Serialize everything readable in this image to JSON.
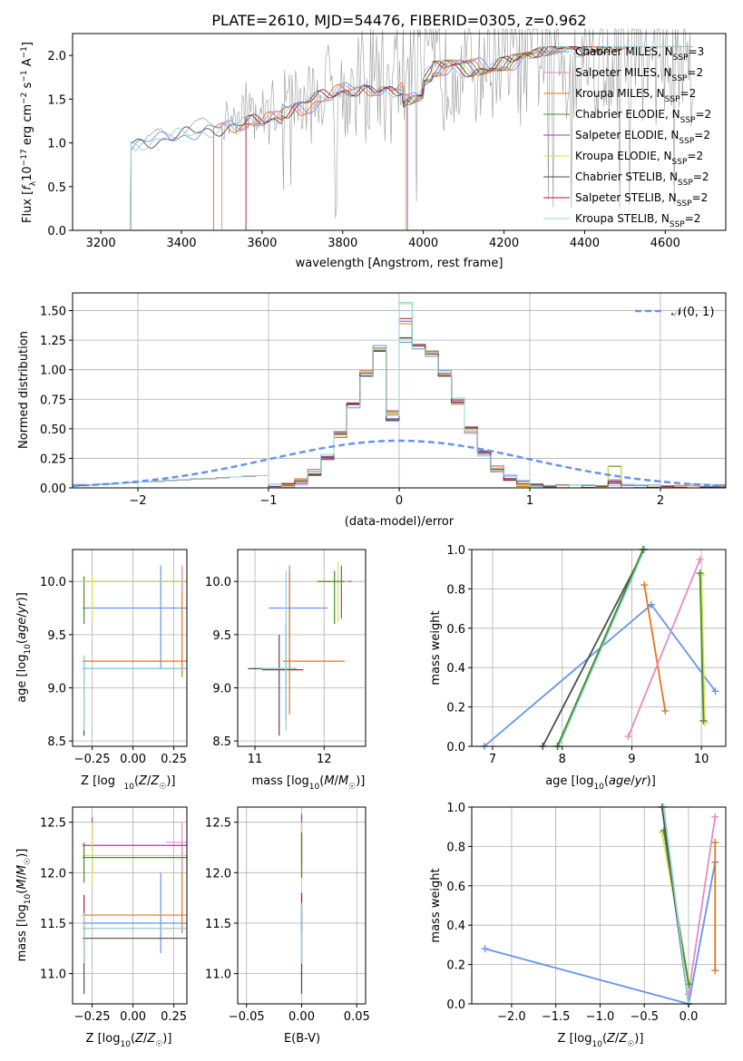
{
  "colors": {
    "blue": "#6495ED",
    "orange": "#E8751A",
    "pink": "#E78AC3",
    "green": "#4A8C2A",
    "purple": "#A03CB4",
    "yellow": "#D4E157",
    "gray": "#4D4D4D",
    "red": "#B2182B",
    "cyan": "#8FD3E0",
    "obs": "#999999",
    "grid": "#B0B0B0"
  },
  "chart_data": [
    {
      "type": "line",
      "title": "PLATE=2610, MJD=54476, FIBERID=0305, z=0.962",
      "xlabel": "wavelength [Angstrom, rest frame]",
      "ylabel": "Flux [f_λ10^-17 erg cm^-2 s^-1 A^-1]",
      "xlim": [
        3130,
        4750
      ],
      "ylim": [
        0,
        2.25
      ],
      "xticks": [
        3200,
        3400,
        3600,
        3800,
        4000,
        4200,
        4400,
        4600
      ],
      "yticks": [
        0.0,
        0.5,
        1.0,
        1.5,
        2.0
      ],
      "legend": [
        "Chabrier MILES, N_SSP=3",
        "Salpeter MILES, N_SSP=2",
        "Kroupa MILES, N_SSP=2",
        "Chabrier ELODIE, N_SSP=2",
        "Salpeter ELODIE, N_SSP=2",
        "Kroupa ELODIE, N_SSP=2",
        "Chabrier STELIB, N_SSP=2",
        "Salpeter STELIB, N_SSP=2",
        "Kroupa STELIB, N_SSP=2"
      ],
      "legend_position": "right",
      "grid": false
    },
    {
      "type": "line",
      "xlabel": "(data-model)/error",
      "ylabel": "Normed distribution",
      "xlim": [
        -2.5,
        2.5
      ],
      "ylim": [
        0,
        1.65
      ],
      "xticks": [
        -2,
        -1,
        0,
        1,
        2
      ],
      "yticks": [
        0.0,
        0.25,
        0.5,
        0.75,
        1.0,
        1.25,
        1.5
      ],
      "legend": [
        "𝒩(0, 1)"
      ],
      "legend_position": "top-right",
      "grid": true,
      "histogram_peak": 1.56
    },
    {
      "type": "scatter",
      "xlabel": "Z [log10(Z/Z☉)]",
      "ylabel": "age  [log10(age/yr)]",
      "xlim": [
        -0.37,
        0.33
      ],
      "ylim": [
        8.45,
        10.3
      ],
      "xticks": [
        -0.25,
        0.0,
        0.25
      ],
      "yticks": [
        8.5,
        9.0,
        9.5,
        10.0
      ],
      "grid": true
    },
    {
      "type": "scatter",
      "xlabel": "mass [log10(M/M☉)]",
      "xlim": [
        10.75,
        12.6
      ],
      "ylim": [
        8.45,
        10.3
      ],
      "xticks": [
        11,
        12
      ],
      "yticks": [
        8.5,
        9.0,
        9.5,
        10.0
      ],
      "grid": true
    },
    {
      "type": "line",
      "xlabel": "age  [log10(age/yr)]",
      "ylabel": "mass weight",
      "xlim": [
        6.7,
        10.35
      ],
      "ylim": [
        0,
        1.0
      ],
      "xticks": [
        7,
        8,
        9,
        10
      ],
      "yticks": [
        0.0,
        0.2,
        0.4,
        0.6,
        0.8,
        1.0
      ],
      "grid": true,
      "series": [
        {
          "color": "blue",
          "x": [
            6.88,
            9.28,
            10.2
          ],
          "y": [
            0.0,
            0.72,
            0.28
          ]
        },
        {
          "color": "orange",
          "x": [
            9.18,
            9.48
          ],
          "y": [
            0.82,
            0.18
          ]
        },
        {
          "color": "pink",
          "x": [
            8.95,
            9.98
          ],
          "y": [
            0.05,
            0.95
          ]
        },
        {
          "color": "yellow",
          "x": [
            10.0,
            10.05
          ],
          "y": [
            0.87,
            0.12
          ]
        },
        {
          "color": "green",
          "x": [
            9.98,
            10.03
          ],
          "y": [
            0.88,
            0.13
          ]
        },
        {
          "color": "gray",
          "x": [
            7.72,
            9.18
          ],
          "y": [
            0.0,
            1.0
          ]
        },
        {
          "color": "cyan",
          "x": [
            7.95,
            9.18
          ],
          "y": [
            0.0,
            1.0
          ]
        },
        {
          "color": "green",
          "x": [
            7.93,
            9.16
          ],
          "y": [
            0.0,
            1.0
          ]
        }
      ]
    },
    {
      "type": "scatter",
      "xlabel": "Z [log10(Z/Z☉)]",
      "ylabel": "mass [log10(M/M☉)]",
      "xlim": [
        -0.37,
        0.33
      ],
      "ylim": [
        10.7,
        12.65
      ],
      "xticks": [
        -0.25,
        0.0,
        0.25
      ],
      "yticks": [
        11.0,
        11.5,
        12.0,
        12.5
      ],
      "grid": true
    },
    {
      "type": "scatter",
      "xlabel": "E(B-V)",
      "xlim": [
        -0.058,
        0.058
      ],
      "ylim": [
        10.7,
        12.65
      ],
      "xticks": [
        -0.05,
        0.0,
        0.05
      ],
      "yticks": [
        11.0,
        11.5,
        12.0,
        12.5
      ],
      "grid": true
    },
    {
      "type": "line",
      "xlabel": "Z [log10(Z/Z☉)]",
      "ylabel": "mass weight",
      "xlim": [
        -2.45,
        0.42
      ],
      "ylim": [
        0,
        1.0
      ],
      "xticks": [
        -2.0,
        -1.5,
        -1.0,
        -0.5,
        0.0
      ],
      "yticks": [
        0.0,
        0.2,
        0.4,
        0.6,
        0.8,
        1.0
      ],
      "grid": true,
      "series": [
        {
          "color": "blue",
          "x": [
            -2.3,
            0.0,
            0.3
          ],
          "y": [
            0.28,
            0.0,
            0.72
          ]
        },
        {
          "color": "orange",
          "x": [
            0.3,
            0.3
          ],
          "y": [
            0.82,
            0.17
          ]
        },
        {
          "color": "pink",
          "x": [
            0.0,
            0.3
          ],
          "y": [
            0.05,
            0.95
          ]
        },
        {
          "color": "yellow",
          "x": [
            -0.3,
            0.0
          ],
          "y": [
            0.87,
            0.12
          ]
        },
        {
          "color": "green",
          "x": [
            -0.28,
            0.0
          ],
          "y": [
            0.88,
            0.1
          ]
        },
        {
          "color": "gray",
          "x": [
            -0.3,
            0.0
          ],
          "y": [
            1.0,
            0.0
          ]
        },
        {
          "color": "cyan",
          "x": [
            -0.28,
            0.0
          ],
          "y": [
            1.0,
            0.0
          ]
        }
      ]
    }
  ]
}
